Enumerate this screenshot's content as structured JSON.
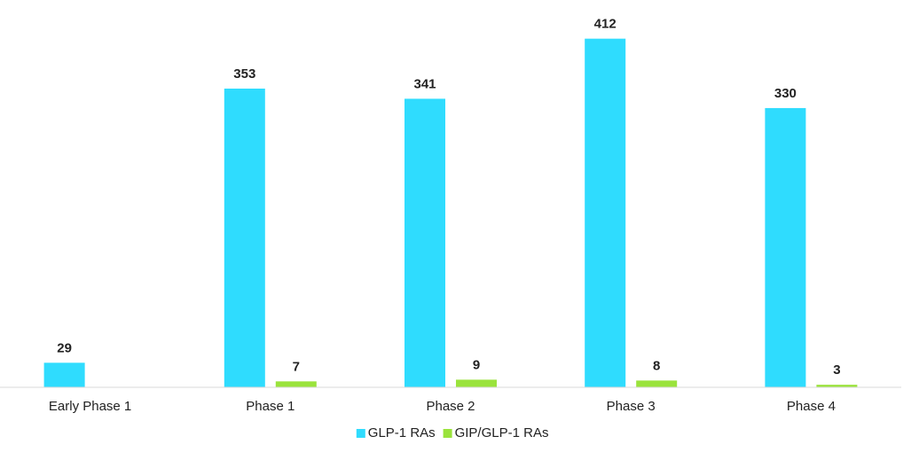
{
  "chart_data": {
    "type": "bar",
    "categories": [
      "Early Phase 1",
      "Phase 1",
      "Phase 2",
      "Phase 3",
      "Phase 4"
    ],
    "series": [
      {
        "name": "GLP-1 RAs",
        "color": "#2fdcfe",
        "values": [
          29,
          353,
          341,
          412,
          330
        ]
      },
      {
        "name": "GIP/GLP-1 RAs",
        "color": "#9ae33c",
        "values": [
          null,
          7,
          9,
          8,
          3
        ]
      }
    ],
    "ylim": [
      0,
      420
    ],
    "legend": "bottom"
  }
}
